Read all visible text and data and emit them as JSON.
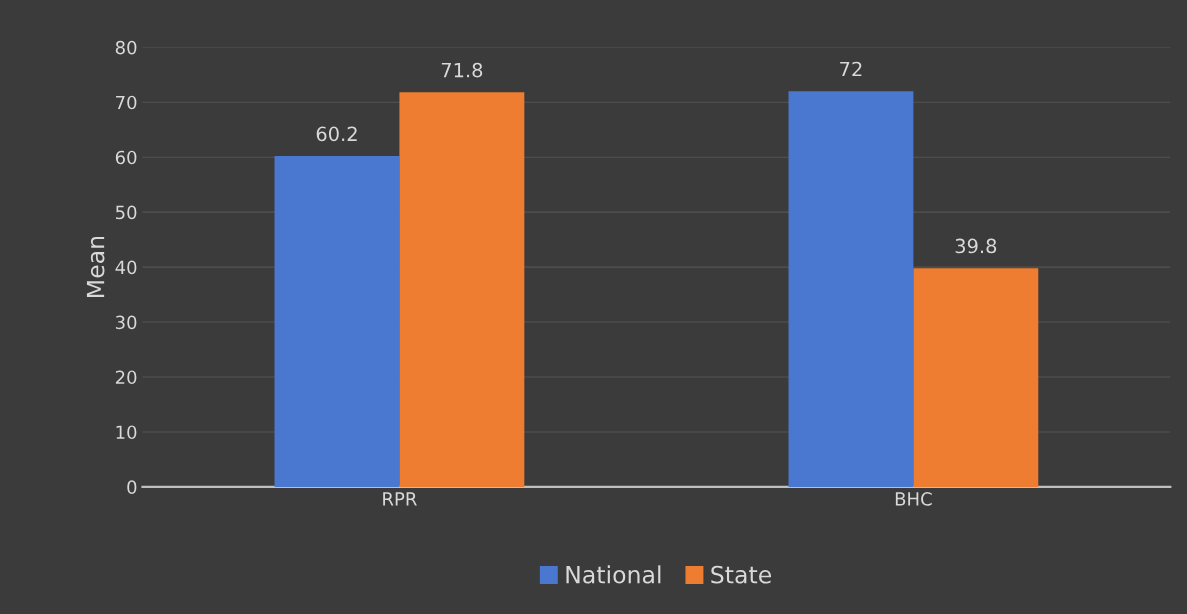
{
  "chart_data": {
    "type": "bar",
    "ylabel": "Mean",
    "categories": [
      "RPR",
      "BHC"
    ],
    "series": [
      {
        "name": "National",
        "color": "#4a78d0",
        "values": [
          60.2,
          72
        ]
      },
      {
        "name": "State",
        "color": "#ee7d31",
        "values": [
          71.8,
          39.8
        ]
      }
    ],
    "ylim": [
      0,
      80
    ],
    "yticks": [
      0,
      10,
      20,
      30,
      40,
      50,
      60,
      70,
      80
    ],
    "grid": "y",
    "legend": "bottom",
    "data_labels": true
  }
}
